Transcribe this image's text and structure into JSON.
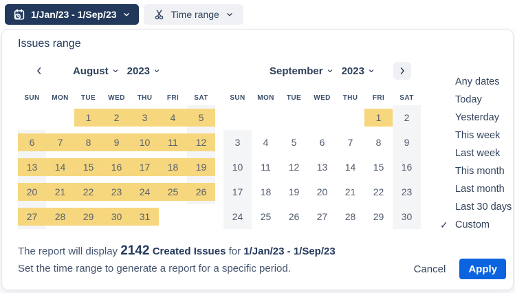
{
  "toolbar": {
    "date_button_label": "1/Jan/23 - 1/Sep/23",
    "time_range_button_label": "Time range"
  },
  "panel": {
    "title": "Issues range",
    "calendars": [
      {
        "month": "August",
        "year": "2023",
        "weekdays": [
          "SUN",
          "MON",
          "TUE",
          "WED",
          "THU",
          "FRI",
          "SAT"
        ],
        "weeks": [
          [
            {
              "t": ""
            },
            {
              "t": ""
            },
            {
              "t": "1",
              "s": true
            },
            {
              "t": "2",
              "s": true
            },
            {
              "t": "3",
              "s": true
            },
            {
              "t": "4",
              "s": true
            },
            {
              "t": "5",
              "s": true
            }
          ],
          [
            {
              "t": "6",
              "s": true
            },
            {
              "t": "7",
              "s": true
            },
            {
              "t": "8",
              "s": true
            },
            {
              "t": "9",
              "s": true
            },
            {
              "t": "10",
              "s": true
            },
            {
              "t": "11",
              "s": true
            },
            {
              "t": "12",
              "s": true
            }
          ],
          [
            {
              "t": "13",
              "s": true
            },
            {
              "t": "14",
              "s": true
            },
            {
              "t": "15",
              "s": true
            },
            {
              "t": "16",
              "s": true
            },
            {
              "t": "17",
              "s": true
            },
            {
              "t": "18",
              "s": true
            },
            {
              "t": "19",
              "s": true
            }
          ],
          [
            {
              "t": "20",
              "s": true
            },
            {
              "t": "21",
              "s": true
            },
            {
              "t": "22",
              "s": true
            },
            {
              "t": "23",
              "s": true
            },
            {
              "t": "24",
              "s": true
            },
            {
              "t": "25",
              "s": true
            },
            {
              "t": "26",
              "s": true
            }
          ],
          [
            {
              "t": "27",
              "s": true
            },
            {
              "t": "28",
              "s": true
            },
            {
              "t": "29",
              "s": true
            },
            {
              "t": "30",
              "s": true
            },
            {
              "t": "31",
              "s": true
            },
            {
              "t": ""
            },
            {
              "t": ""
            }
          ]
        ]
      },
      {
        "month": "September",
        "year": "2023",
        "weekdays": [
          "SUN",
          "MON",
          "TUE",
          "WED",
          "THU",
          "FRI",
          "SAT"
        ],
        "weeks": [
          [
            {
              "t": ""
            },
            {
              "t": ""
            },
            {
              "t": ""
            },
            {
              "t": ""
            },
            {
              "t": ""
            },
            {
              "t": "1",
              "s": true
            },
            {
              "t": "2"
            }
          ],
          [
            {
              "t": "3"
            },
            {
              "t": "4"
            },
            {
              "t": "5"
            },
            {
              "t": "6"
            },
            {
              "t": "7"
            },
            {
              "t": "8"
            },
            {
              "t": "9"
            }
          ],
          [
            {
              "t": "10"
            },
            {
              "t": "11"
            },
            {
              "t": "12"
            },
            {
              "t": "13"
            },
            {
              "t": "14"
            },
            {
              "t": "15"
            },
            {
              "t": "16"
            }
          ],
          [
            {
              "t": "17"
            },
            {
              "t": "18"
            },
            {
              "t": "19"
            },
            {
              "t": "20"
            },
            {
              "t": "21"
            },
            {
              "t": "22"
            },
            {
              "t": "23"
            }
          ],
          [
            {
              "t": "24"
            },
            {
              "t": "25"
            },
            {
              "t": "26"
            },
            {
              "t": "27"
            },
            {
              "t": "28"
            },
            {
              "t": "29"
            },
            {
              "t": "30"
            }
          ]
        ]
      }
    ],
    "presets": [
      "Any dates",
      "Today",
      "Yesterday",
      "This week",
      "Last week",
      "This month",
      "Last month",
      "Last 30 days",
      "Custom"
    ],
    "selected_preset": "Custom",
    "footer": {
      "summary_prefix": "The report will display",
      "summary_count": "2142",
      "summary_metric": "Created Issues",
      "summary_connector": "for",
      "summary_range": "1/Jan/23 - 1/Sep/23",
      "hint": "Set the time range to generate a report for a specific period.",
      "cancel_label": "Cancel",
      "apply_label": "Apply"
    }
  },
  "icons": {
    "check": "✓"
  },
  "colors": {
    "dark_button_bg": "#22395B",
    "light_button_bg": "#F0F1F4",
    "selection_yellow": "#F6D77E",
    "weekend_gray": "#F4F5F7",
    "apply_blue": "#0C63E0",
    "text_navy": "#24395B"
  }
}
